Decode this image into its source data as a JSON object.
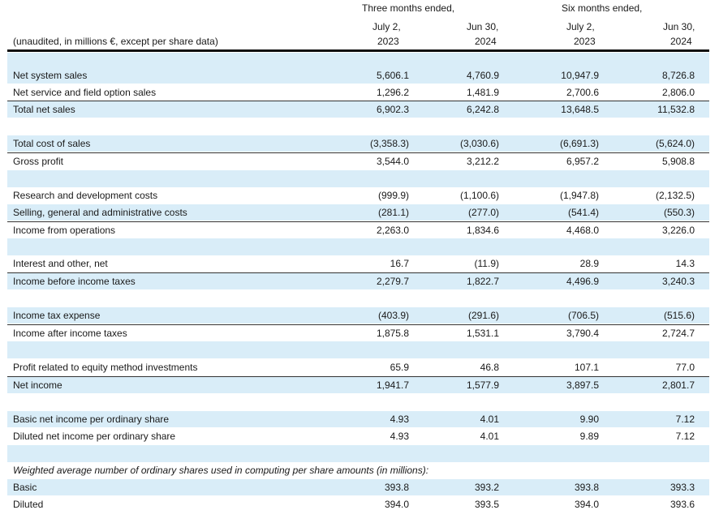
{
  "header": {
    "three_months": "Three months ended,",
    "six_months": "Six months ended,",
    "col_dates": [
      "July 2,",
      "Jun 30,",
      "July 2,",
      "Jun 30,"
    ],
    "col_years": [
      "2023",
      "2024",
      "2023",
      "2024"
    ],
    "units_note": "(unaudited, in millions €, except per share data)"
  },
  "rows": [
    {
      "label": "Net system sales",
      "v": [
        "5,606.1",
        "4,760.9",
        "10,947.9",
        "8,726.8"
      ]
    },
    {
      "label": "Net service and field option sales",
      "v": [
        "1,296.2",
        "1,481.9",
        "2,700.6",
        "2,806.0"
      ]
    },
    {
      "label": "Total net sales",
      "v": [
        "6,902.3",
        "6,242.8",
        "13,648.5",
        "11,532.8"
      ]
    },
    {
      "label": "Total cost of sales",
      "v": [
        "(3,358.3)",
        "(3,030.6)",
        "(6,691.3)",
        "(5,624.0)"
      ]
    },
    {
      "label": "Gross profit",
      "v": [
        "3,544.0",
        "3,212.2",
        "6,957.2",
        "5,908.8"
      ]
    },
    {
      "label": "Research and development costs",
      "v": [
        "(999.9)",
        "(1,100.6)",
        "(1,947.8)",
        "(2,132.5)"
      ]
    },
    {
      "label": "Selling, general and administrative costs",
      "v": [
        "(281.1)",
        "(277.0)",
        "(541.4)",
        "(550.3)"
      ]
    },
    {
      "label": "Income from operations",
      "v": [
        "2,263.0",
        "1,834.6",
        "4,468.0",
        "3,226.0"
      ]
    },
    {
      "label": "Interest and other, net",
      "v": [
        "16.7",
        "(11.9)",
        "28.9",
        "14.3"
      ]
    },
    {
      "label": "Income before income taxes",
      "v": [
        "2,279.7",
        "1,822.7",
        "4,496.9",
        "3,240.3"
      ]
    },
    {
      "label": "Income tax expense",
      "v": [
        "(403.9)",
        "(291.6)",
        "(706.5)",
        "(515.6)"
      ]
    },
    {
      "label": "Income after income taxes",
      "v": [
        "1,875.8",
        "1,531.1",
        "3,790.4",
        "2,724.7"
      ]
    },
    {
      "label": "Profit related to equity method investments",
      "v": [
        "65.9",
        "46.8",
        "107.1",
        "77.0"
      ]
    },
    {
      "label": "Net income",
      "v": [
        "1,941.7",
        "1,577.9",
        "3,897.5",
        "2,801.7"
      ]
    },
    {
      "label": "Basic net income per ordinary share",
      "v": [
        "4.93",
        "4.01",
        "9.90",
        "7.12"
      ]
    },
    {
      "label": "Diluted net income per ordinary share",
      "v": [
        "4.93",
        "4.01",
        "9.89",
        "7.12"
      ]
    },
    {
      "label": "Weighted average number of ordinary shares used in computing per share amounts (in millions):",
      "v": [
        "",
        "",
        "",
        ""
      ]
    },
    {
      "label": "Basic",
      "v": [
        "393.8",
        "393.2",
        "393.8",
        "393.3"
      ]
    },
    {
      "label": "Diluted",
      "v": [
        "394.0",
        "393.5",
        "394.0",
        "393.6"
      ]
    }
  ]
}
